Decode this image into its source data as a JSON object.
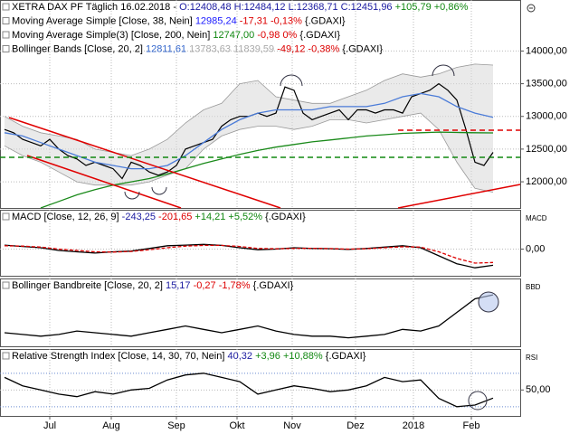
{
  "chart_data": [
    {
      "type": "line",
      "legend": [
        {
          "name": "XETRA DAX PF Täglich",
          "parts": [
            {
              "text": "16.02.2018 -",
              "color": "#000000"
            },
            {
              "text": "O:12408,48 H:12484,12 L:12368,71 C:12451,96",
              "color": "#1a1aa0"
            },
            {
              "text": "+105,79 +0,86%",
              "color": "#118811"
            }
          ]
        },
        {
          "name": "Moving Average Simple [Close, 38, Nein]",
          "parts": [
            {
              "text": "12985,24",
              "color": "#1a1aff"
            },
            {
              "text": "-17,31 -0,13%",
              "color": "#dd0000"
            },
            {
              "text": "{.GDAXI}",
              "color": "#000000"
            }
          ]
        },
        {
          "name": "Moving Average Simple(3) [Close, 200, Nein]",
          "parts": [
            {
              "text": "12747,00",
              "color": "#118811"
            },
            {
              "text": "-0,98 0%",
              "color": "#dd0000"
            },
            {
              "text": "{.GDAXI}",
              "color": "#000000"
            }
          ]
        },
        {
          "name": "Bollinger Bands [Close, 20, 2]",
          "parts": [
            {
              "text": "12811,61",
              "color": "#3366cc"
            },
            {
              "text": "13783,63 11839,59",
              "color": "#aaaaaa"
            },
            {
              "text": "-49,12 -0,38%",
              "color": "#dd0000"
            },
            {
              "text": "{.GDAXI}",
              "color": "#000000"
            }
          ]
        }
      ],
      "series": [
        {
          "color": "#000000",
          "values": [
            12800,
            12750,
            12650,
            12600,
            12550,
            12650,
            12500,
            12400,
            12350,
            12250,
            12300,
            12250,
            12200,
            12050,
            12300,
            12250,
            12150,
            12100,
            12150,
            12250,
            12500,
            12550,
            12600,
            12650,
            12850,
            12950,
            13000,
            13000,
            13050,
            13000,
            13050,
            13450,
            13400,
            13050,
            12950,
            13000,
            13050,
            13100,
            12950,
            13100,
            13100,
            13050,
            13100,
            13100,
            13050,
            13300,
            13350,
            13400,
            13500,
            13400,
            13250,
            12800,
            12300,
            12250,
            12450
          ]
        },
        {
          "color": "#4a7bd8",
          "values": [
            12750,
            12700,
            12600,
            12500,
            12400,
            12300,
            12250,
            12200,
            12200,
            12250,
            12400,
            12600,
            12800,
            12950,
            13050,
            13100,
            13100,
            13100,
            13150,
            13150,
            13150,
            13200,
            13300,
            13350,
            13300,
            13150,
            13050,
            12985
          ]
        },
        {
          "color": "#1a8a1a",
          "values": [
            null,
            null,
            11600,
            11700,
            11800,
            11880,
            11950,
            12000,
            12050,
            12120,
            12200,
            12280,
            12350,
            12420,
            12480,
            12530,
            12570,
            12610,
            12640,
            12670,
            12700,
            12720,
            12740,
            12750,
            12760,
            12755,
            12750,
            12747
          ]
        }
      ],
      "bands": {
        "color": "#d8d8d8",
        "upper": [
          13000,
          12850,
          12750,
          12700,
          12650,
          12500,
          12450,
          12400,
          12500,
          12650,
          12900,
          13100,
          13200,
          13500,
          13550,
          13300,
          13250,
          13200,
          13200,
          13300,
          13400,
          13550,
          13650,
          13600,
          13650,
          13750,
          13800,
          13784
        ],
        "lower": [
          12550,
          12400,
          12300,
          12150,
          12000,
          11950,
          11950,
          11950,
          12000,
          12100,
          12200,
          12500,
          12700,
          12800,
          12850,
          12850,
          12800,
          12850,
          12950,
          12950,
          12900,
          12950,
          13000,
          13050,
          12800,
          12300,
          11900,
          11840
        ]
      },
      "ylim": [
        11600,
        14780
      ],
      "yticks": [
        {
          "value": 12000,
          "label": "12000,00"
        },
        {
          "value": 12500,
          "label": "12500,00"
        },
        {
          "value": 13000,
          "label": "13000,00"
        },
        {
          "value": 13500,
          "label": "13500,00"
        },
        {
          "value": 14000,
          "label": "14000,00"
        }
      ]
    },
    {
      "type": "line",
      "axis_label": "MACD",
      "legend": [
        {
          "name": "MACD [Close, 12, 26, 9]",
          "parts": [
            {
              "text": "-243,25",
              "color": "#1a1aa0"
            },
            {
              "text": "-201,65",
              "color": "#dd0000"
            },
            {
              "text": "+14,21 +5,52%",
              "color": "#118811"
            },
            {
              "text": "{.GDAXI}",
              "color": "#000000"
            }
          ]
        }
      ],
      "series": [
        {
          "color": "#000000",
          "values": [
            60,
            40,
            20,
            -20,
            -40,
            -60,
            -40,
            -30,
            10,
            50,
            60,
            70,
            55,
            20,
            -10,
            0,
            20,
            10,
            5,
            -5,
            10,
            30,
            50,
            20,
            -100,
            -220,
            -280,
            -243
          ]
        },
        {
          "color": "#dd0000",
          "dashed": true,
          "values": [
            50,
            45,
            30,
            0,
            -20,
            -40,
            -45,
            -35,
            -10,
            20,
            45,
            55,
            55,
            40,
            10,
            5,
            10,
            12,
            8,
            0,
            5,
            20,
            35,
            30,
            -40,
            -140,
            -210,
            -201
          ]
        }
      ],
      "ylim": [
        -400,
        590
      ],
      "yticks": [
        {
          "value": 0,
          "label": "0,00"
        }
      ]
    },
    {
      "type": "line",
      "axis_label": "BBD",
      "legend": [
        {
          "name": "Bollinger Bandbreite [Close, 20, 2]",
          "parts": [
            {
              "text": "15,17",
              "color": "#1a1aa0"
            },
            {
              "text": "-0,27 -1,78%",
              "color": "#dd0000"
            },
            {
              "text": "{.GDAXI}",
              "color": "#000000"
            }
          ]
        }
      ],
      "series": [
        {
          "color": "#000000",
          "values": [
            4,
            3.5,
            3,
            3.5,
            4.5,
            4,
            3.5,
            3,
            4,
            5,
            6,
            5,
            4,
            5,
            6,
            4.5,
            3.5,
            3,
            3,
            2.5,
            3,
            3.5,
            5,
            4.5,
            6,
            10,
            14,
            15.17
          ]
        }
      ],
      "ylim": [
        0,
        20
      ],
      "yticks": []
    },
    {
      "type": "line",
      "axis_label": "RSI",
      "legend": [
        {
          "name": "Relative Strength Index [Close, 14, 30, 70, Nein]",
          "parts": [
            {
              "text": "40,32",
              "color": "#1a1aa0"
            },
            {
              "text": "+3,96 +10,88%",
              "color": "#118811"
            },
            {
              "text": "{.GDAXI}",
              "color": "#000000"
            }
          ]
        }
      ],
      "series": [
        {
          "color": "#000000",
          "values": [
            65,
            55,
            50,
            45,
            42,
            48,
            45,
            50,
            52,
            62,
            68,
            70,
            65,
            60,
            45,
            50,
            55,
            52,
            48,
            50,
            55,
            65,
            60,
            62,
            40,
            30,
            32,
            40.32
          ]
        }
      ],
      "levels": [
        30,
        70
      ],
      "ylim": [
        19,
        99
      ],
      "yticks": [
        {
          "value": 50,
          "label": "50,00"
        }
      ],
      "xlim": [
        0,
        54
      ],
      "xticks": [
        {
          "value": 5,
          "label": "Jul"
        },
        {
          "value": 11.8,
          "label": "Aug"
        },
        {
          "value": 19,
          "label": "Sep"
        },
        {
          "value": 25.7,
          "label": "Okt"
        },
        {
          "value": 31.8,
          "label": "Nov"
        },
        {
          "value": 38.8,
          "label": "Dez"
        },
        {
          "value": 45.2,
          "label": "2018"
        },
        {
          "value": 51.6,
          "label": "Feb"
        }
      ]
    }
  ]
}
